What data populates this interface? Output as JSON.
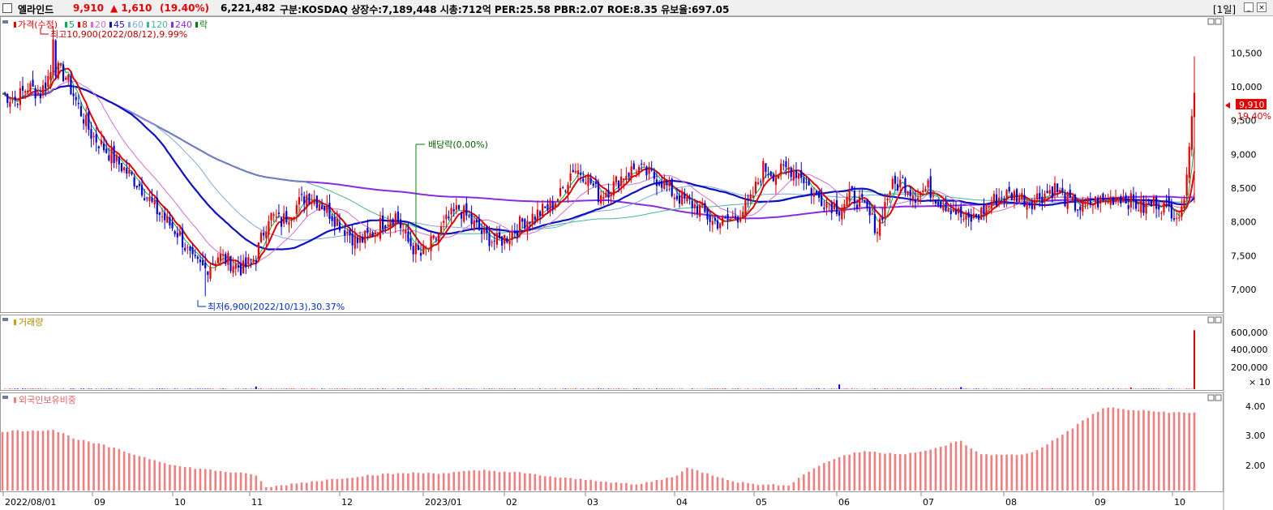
{
  "header": {
    "name": "엘라인드",
    "price": "9,910",
    "change": "▲ 1,610",
    "rate": "(19.40%)",
    "volume": "6,221,482",
    "info": "구분:KOSDAQ 상장수:7,189,448 시총:712억 PER:25.58 PBR:2.07 ROE:8.35 유보율:697.05",
    "period": "[1일]",
    "min_btn": "_",
    "close_btn": "×"
  },
  "colors": {
    "up": "#e60000",
    "down": "#0000d8",
    "ma5": "#00b050",
    "ma8": "#e60000",
    "ma20": "#d070d0",
    "ma45": "#1010c0",
    "ma60": "#7fa8d8",
    "ma120": "#40b890",
    "ma240": "#8a2be2",
    "foreign": "#f08080"
  },
  "price_panel": {
    "legend": [
      {
        "text": "가격(수정)",
        "color": "#e60000"
      },
      {
        "text": "5",
        "color": "#00b050"
      },
      {
        "text": "8",
        "color": "#e60000"
      },
      {
        "text": "20",
        "color": "#d070d0"
      },
      {
        "text": "45",
        "color": "#1010c0"
      },
      {
        "text": "60",
        "color": "#7fa8d8"
      },
      {
        "text": "120",
        "color": "#40b890"
      },
      {
        "text": "240",
        "color": "#8a2be2"
      },
      {
        "text": "락",
        "color": "#008000"
      }
    ],
    "high_note": "최고10,900(2022/08/12),9.99%",
    "low_note": "최저6,900(2022/10/13),30.37%",
    "dividend_note": "배당락(0.00%)",
    "y_ticks": [
      "10,500",
      "10,000",
      "9,500",
      "9,000",
      "8,500",
      "8,000",
      "7,500",
      "7,000"
    ],
    "current_price": "9,910",
    "current_rate": "19.40%"
  },
  "volume_panel": {
    "title": "거래량",
    "y_ticks": [
      "600,000",
      "400,000",
      "200,000"
    ],
    "multiplier": "× 10"
  },
  "foreign_panel": {
    "title": "외국인보유비중",
    "y_ticks": [
      "4.00",
      "3.00",
      "2.00"
    ]
  },
  "x_labels": [
    "2022/08/01",
    "09",
    "10",
    "11",
    "12",
    "2023/01",
    "02",
    "03",
    "04",
    "05",
    "06",
    "07",
    "08",
    "09",
    "10"
  ],
  "chart_data": {
    "type": "candlestick",
    "price_range": [
      6700,
      10900
    ],
    "months": [
      "2022/08/01",
      "09",
      "10",
      "11",
      "12",
      "2023/01",
      "02",
      "03",
      "04",
      "05",
      "06",
      "07",
      "08",
      "09",
      "10"
    ],
    "close_path": [
      [
        0,
        9900
      ],
      [
        5,
        9800
      ],
      [
        10,
        10000
      ],
      [
        15,
        9900
      ],
      [
        20,
        10300
      ],
      [
        25,
        10150
      ],
      [
        30,
        9700
      ],
      [
        35,
        9300
      ],
      [
        40,
        9100
      ],
      [
        45,
        8900
      ],
      [
        50,
        8700
      ],
      [
        55,
        8500
      ],
      [
        60,
        8200
      ],
      [
        65,
        8000
      ],
      [
        70,
        7800
      ],
      [
        75,
        7400
      ],
      [
        80,
        7300
      ],
      [
        85,
        7500
      ],
      [
        90,
        7400
      ],
      [
        95,
        7300
      ],
      [
        100,
        7500
      ],
      [
        105,
        8100
      ],
      [
        110,
        8000
      ],
      [
        115,
        8200
      ],
      [
        120,
        8400
      ],
      [
        125,
        8300
      ],
      [
        130,
        8100
      ],
      [
        135,
        7900
      ],
      [
        140,
        7700
      ],
      [
        145,
        7800
      ],
      [
        150,
        8000
      ],
      [
        155,
        8100
      ],
      [
        160,
        7700
      ],
      [
        165,
        7500
      ],
      [
        170,
        7700
      ],
      [
        175,
        8000
      ],
      [
        180,
        8200
      ],
      [
        185,
        8000
      ],
      [
        190,
        7800
      ],
      [
        195,
        7700
      ],
      [
        200,
        7800
      ],
      [
        205,
        8000
      ],
      [
        210,
        8100
      ],
      [
        215,
        8200
      ],
      [
        220,
        8400
      ],
      [
        225,
        8800
      ],
      [
        230,
        8700
      ],
      [
        235,
        8400
      ],
      [
        240,
        8500
      ],
      [
        245,
        8700
      ],
      [
        250,
        8800
      ],
      [
        255,
        8700
      ],
      [
        260,
        8600
      ],
      [
        265,
        8400
      ],
      [
        270,
        8300
      ],
      [
        275,
        8200
      ],
      [
        280,
        8000
      ],
      [
        285,
        8000
      ],
      [
        290,
        8100
      ],
      [
        295,
        8300
      ],
      [
        300,
        8800
      ],
      [
        305,
        8700
      ],
      [
        310,
        8800
      ],
      [
        315,
        8700
      ],
      [
        320,
        8400
      ],
      [
        325,
        8300
      ],
      [
        330,
        8200
      ],
      [
        335,
        8400
      ],
      [
        340,
        8200
      ],
      [
        345,
        7900
      ],
      [
        350,
        8500
      ],
      [
        355,
        8600
      ],
      [
        360,
        8400
      ],
      [
        365,
        8500
      ],
      [
        370,
        8300
      ],
      [
        375,
        8200
      ],
      [
        380,
        8000
      ],
      [
        385,
        8100
      ],
      [
        390,
        8300
      ],
      [
        395,
        8400
      ],
      [
        400,
        8400
      ],
      [
        405,
        8300
      ],
      [
        410,
        8400
      ],
      [
        415,
        8500
      ],
      [
        420,
        8300
      ],
      [
        425,
        8200
      ],
      [
        430,
        8300
      ],
      [
        435,
        8300
      ],
      [
        440,
        8400
      ],
      [
        445,
        8300
      ],
      [
        450,
        8200
      ],
      [
        455,
        8300
      ],
      [
        460,
        8200
      ],
      [
        465,
        8100
      ],
      [
        470,
        9910
      ]
    ],
    "high": {
      "value": 10900,
      "date": "2022/08/12"
    },
    "low": {
      "value": 6900,
      "date": "2022/10/13"
    },
    "last_close": 9910,
    "volume_range": [
      0,
      650000
    ],
    "volume_last": 622148,
    "foreign_ratio_range": [
      1.0,
      4.3
    ],
    "foreign_ratio": [
      [
        0,
        3.1
      ],
      [
        20,
        3.15
      ],
      [
        30,
        2.8
      ],
      [
        40,
        2.6
      ],
      [
        55,
        2.2
      ],
      [
        70,
        1.85
      ],
      [
        85,
        1.7
      ],
      [
        100,
        1.55
      ],
      [
        104,
        1.1
      ],
      [
        115,
        1.25
      ],
      [
        130,
        1.4
      ],
      [
        145,
        1.55
      ],
      [
        160,
        1.62
      ],
      [
        175,
        1.62
      ],
      [
        190,
        1.72
      ],
      [
        205,
        1.62
      ],
      [
        220,
        1.45
      ],
      [
        235,
        1.35
      ],
      [
        250,
        1.2
      ],
      [
        265,
        1.5
      ],
      [
        270,
        1.8
      ],
      [
        280,
        1.55
      ],
      [
        290,
        1.3
      ],
      [
        300,
        1.2
      ],
      [
        310,
        1.2
      ],
      [
        320,
        1.8
      ],
      [
        330,
        2.2
      ],
      [
        340,
        2.4
      ],
      [
        345,
        2.35
      ],
      [
        355,
        2.3
      ],
      [
        365,
        2.4
      ],
      [
        375,
        2.7
      ],
      [
        378,
        2.75
      ],
      [
        385,
        2.3
      ],
      [
        395,
        2.25
      ],
      [
        405,
        2.3
      ],
      [
        415,
        2.8
      ],
      [
        425,
        3.4
      ],
      [
        430,
        3.7
      ],
      [
        435,
        3.95
      ],
      [
        445,
        3.85
      ],
      [
        455,
        3.8
      ],
      [
        465,
        3.75
      ]
    ]
  }
}
